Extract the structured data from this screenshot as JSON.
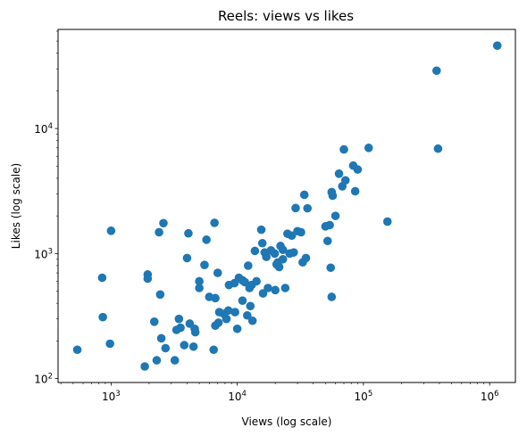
{
  "chart_data": {
    "type": "scatter",
    "title": "Reels: views vs likes",
    "xlabel": "Views (log scale)",
    "ylabel": "Likes (log scale)",
    "xscale": "log",
    "yscale": "log",
    "xlim": [
      380,
      1600000
    ],
    "ylim": [
      93,
      62000
    ],
    "x_ticks": [
      {
        "value": 1000,
        "base": "10",
        "exp": "3"
      },
      {
        "value": 10000,
        "base": "10",
        "exp": "4"
      },
      {
        "value": 100000,
        "base": "10",
        "exp": "5"
      },
      {
        "value": 1000000,
        "base": "10",
        "exp": "6"
      }
    ],
    "y_ticks": [
      {
        "value": 100,
        "base": "10",
        "exp": "2"
      },
      {
        "value": 1000,
        "base": "10",
        "exp": "3"
      },
      {
        "value": 10000,
        "base": "10",
        "exp": "4"
      }
    ],
    "grid": false,
    "legend": "none",
    "marker_color": "#1f77b4",
    "points": [
      [
        540,
        170
      ],
      [
        850,
        640
      ],
      [
        860,
        310
      ],
      [
        980,
        190
      ],
      [
        1000,
        1520
      ],
      [
        1850,
        125
      ],
      [
        1950,
        680
      ],
      [
        1950,
        630
      ],
      [
        2200,
        285
      ],
      [
        2300,
        140
      ],
      [
        2400,
        1480
      ],
      [
        2450,
        470
      ],
      [
        2500,
        210
      ],
      [
        2600,
        1750
      ],
      [
        2700,
        175
      ],
      [
        3200,
        140
      ],
      [
        3300,
        245
      ],
      [
        3450,
        300
      ],
      [
        3550,
        255
      ],
      [
        3800,
        185
      ],
      [
        4000,
        920
      ],
      [
        4100,
        1450
      ],
      [
        4200,
        275
      ],
      [
        4500,
        180
      ],
      [
        4600,
        250
      ],
      [
        4650,
        235
      ],
      [
        5000,
        600
      ],
      [
        5000,
        530
      ],
      [
        5500,
        810
      ],
      [
        5700,
        1290
      ],
      [
        6000,
        450
      ],
      [
        6500,
        170
      ],
      [
        6600,
        1760
      ],
      [
        6700,
        265
      ],
      [
        6700,
        440
      ],
      [
        7000,
        700
      ],
      [
        7100,
        280
      ],
      [
        7200,
        340
      ],
      [
        7800,
        330
      ],
      [
        8200,
        300
      ],
      [
        8500,
        350
      ],
      [
        8600,
        560
      ],
      [
        9500,
        580
      ],
      [
        9600,
        340
      ],
      [
        10000,
        250
      ],
      [
        10300,
        640
      ],
      [
        11000,
        420
      ],
      [
        11000,
        610
      ],
      [
        11500,
        590
      ],
      [
        12000,
        320
      ],
      [
        12200,
        800
      ],
      [
        12500,
        530
      ],
      [
        12700,
        380
      ],
      [
        13000,
        560
      ],
      [
        13200,
        290
      ],
      [
        13800,
        1050
      ],
      [
        14200,
        600
      ],
      [
        15500,
        1550
      ],
      [
        15800,
        1210
      ],
      [
        16000,
        480
      ],
      [
        16500,
        1020
      ],
      [
        17000,
        940
      ],
      [
        17500,
        530
      ],
      [
        18500,
        1060
      ],
      [
        19800,
        1000
      ],
      [
        20000,
        510
      ],
      [
        20500,
        820
      ],
      [
        21000,
        850
      ],
      [
        21500,
        780
      ],
      [
        22000,
        1150
      ],
      [
        23000,
        900
      ],
      [
        23000,
        1070
      ],
      [
        24000,
        530
      ],
      [
        25000,
        1440
      ],
      [
        26000,
        1000
      ],
      [
        27000,
        1390
      ],
      [
        28000,
        1020
      ],
      [
        29000,
        2310
      ],
      [
        30000,
        1510
      ],
      [
        32000,
        1480
      ],
      [
        33000,
        850
      ],
      [
        34000,
        2950
      ],
      [
        35000,
        920
      ],
      [
        36000,
        2300
      ],
      [
        50000,
        1650
      ],
      [
        52000,
        1260
      ],
      [
        54000,
        1690
      ],
      [
        55000,
        770
      ],
      [
        56000,
        3100
      ],
      [
        57000,
        2900
      ],
      [
        60000,
        2000
      ],
      [
        64000,
        4350
      ],
      [
        68000,
        3450
      ],
      [
        70000,
        6800
      ],
      [
        72000,
        3850
      ],
      [
        83000,
        5050
      ],
      [
        86000,
        3150
      ],
      [
        90000,
        4700
      ],
      [
        110000,
        7000
      ],
      [
        155000,
        1800
      ],
      [
        380000,
        29000
      ],
      [
        390000,
        6900
      ],
      [
        1150000,
        46000
      ],
      [
        56000,
        450
      ]
    ]
  }
}
